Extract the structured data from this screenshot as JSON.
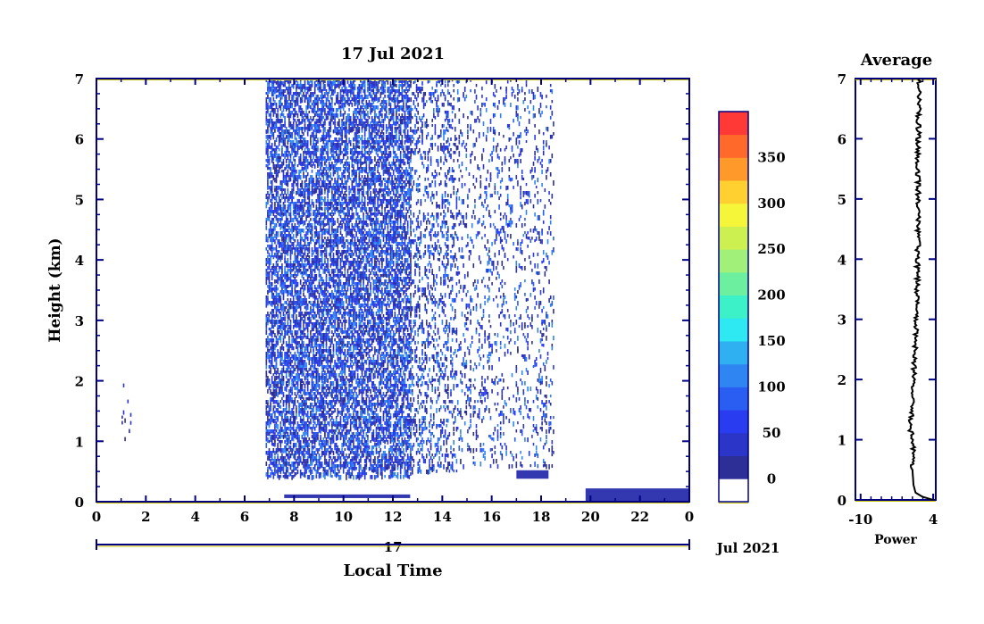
{
  "colors": {
    "axis_main": "#000080",
    "axis_yellow": "#c8c000",
    "text": "#000000",
    "profile_line": "#000000",
    "echo_dense": "#3338b0"
  },
  "chart_data": [
    {
      "type": "heatmap",
      "title": "17 Jul 2021",
      "xlabel": "Local Time",
      "ylabel": "Height (km)",
      "x_ticks": [
        "0",
        "2",
        "4",
        "6",
        "8",
        "10",
        "12",
        "14",
        "16",
        "18",
        "20",
        "22",
        "0"
      ],
      "y_ticks": [
        "0",
        "1",
        "2",
        "3",
        "4",
        "5",
        "6",
        "7"
      ],
      "xlim": [
        0,
        24
      ],
      "ylim": [
        0,
        7
      ],
      "date_axis": {
        "day_label": "17",
        "month_label": "Jul 2021"
      },
      "colorbar": {
        "tick_labels": [
          "0",
          "50",
          "100",
          "150",
          "200",
          "250",
          "300",
          "350"
        ],
        "levels": [
          {
            "min": null,
            "max": 0,
            "color": "#ffffff"
          },
          {
            "min": 0,
            "max": 25,
            "color": "#2d2f96"
          },
          {
            "min": 25,
            "max": 50,
            "color": "#2b35c8"
          },
          {
            "min": 50,
            "max": 75,
            "color": "#2a3cf0"
          },
          {
            "min": 75,
            "max": 100,
            "color": "#2a5ef2"
          },
          {
            "min": 100,
            "max": 125,
            "color": "#2f86f2"
          },
          {
            "min": 125,
            "max": 150,
            "color": "#2fb0f0"
          },
          {
            "min": 150,
            "max": 175,
            "color": "#2ee8f2"
          },
          {
            "min": 175,
            "max": 200,
            "color": "#3cf0c8"
          },
          {
            "min": 200,
            "max": 225,
            "color": "#6cf0a0"
          },
          {
            "min": 225,
            "max": 250,
            "color": "#a0f07a"
          },
          {
            "min": 250,
            "max": 275,
            "color": "#ccf050"
          },
          {
            "min": 275,
            "max": 300,
            "color": "#f5f53a"
          },
          {
            "min": 300,
            "max": 325,
            "color": "#ffd030"
          },
          {
            "min": 325,
            "max": 350,
            "color": "#ff9a2a"
          },
          {
            "min": 350,
            "max": 375,
            "color": "#ff6a2a"
          },
          {
            "min": 375,
            "max": 400,
            "color": "#ff3a36"
          }
        ]
      },
      "echo_regions": [
        {
          "t_start": 0.9,
          "t_end": 1.4,
          "h_bottom": 1.0,
          "h_top": 2.0,
          "density": 0.05,
          "note_level": 0
        },
        {
          "t_start": 6.85,
          "t_end": 12.7,
          "h_bottom": 0.4,
          "h_top": 7.0,
          "density": 0.55,
          "note_level": 1
        },
        {
          "t_start": 12.7,
          "t_end": 14.6,
          "h_bottom": 0.5,
          "h_top": 7.0,
          "density": 0.22,
          "note_level": 1
        },
        {
          "t_start": 14.6,
          "t_end": 18.5,
          "h_bottom": 0.6,
          "h_top": 7.0,
          "density": 0.12,
          "note_level": 1
        },
        {
          "t_start": 7.6,
          "t_end": 12.7,
          "h_bottom": 0.06,
          "h_top": 0.12,
          "density": 1.0,
          "note_level": 0
        },
        {
          "t_start": 17.0,
          "t_end": 18.3,
          "h_bottom": 0.38,
          "h_top": 0.52,
          "density": 0.6,
          "note_level": 0
        },
        {
          "t_start": 19.8,
          "t_end": 24.0,
          "h_bottom": 0.0,
          "h_top": 0.22,
          "density": 0.7,
          "note_level": 0
        }
      ]
    },
    {
      "type": "line",
      "title": "Average",
      "xlabel": "Power",
      "x_ticks": [
        "-10",
        "4"
      ],
      "y_ticks": [
        "0",
        "1",
        "2",
        "3",
        "4",
        "5",
        "6",
        "7"
      ],
      "xlim": [
        -11,
        4.5
      ],
      "ylim": [
        0,
        7
      ],
      "profile": [
        {
          "h": 0.0,
          "p": 4.0
        },
        {
          "h": 0.05,
          "p": 2.0
        },
        {
          "h": 0.12,
          "p": 0.6
        },
        {
          "h": 0.25,
          "p": 0.2
        },
        {
          "h": 0.5,
          "p": 0.0
        },
        {
          "h": 0.8,
          "p": 0.05
        },
        {
          "h": 1.0,
          "p": 0.2
        },
        {
          "h": 1.2,
          "p": -0.5
        },
        {
          "h": 1.5,
          "p": 0.0
        },
        {
          "h": 2.0,
          "p": 0.2
        },
        {
          "h": 2.5,
          "p": 0.5
        },
        {
          "h": 3.0,
          "p": 0.8
        },
        {
          "h": 3.5,
          "p": 0.9
        },
        {
          "h": 4.0,
          "p": 1.0
        },
        {
          "h": 4.5,
          "p": 1.1
        },
        {
          "h": 5.0,
          "p": 1.2
        },
        {
          "h": 5.5,
          "p": 1.0
        },
        {
          "h": 6.0,
          "p": 1.1
        },
        {
          "h": 6.5,
          "p": 1.2
        },
        {
          "h": 7.0,
          "p": 1.3
        }
      ]
    }
  ]
}
